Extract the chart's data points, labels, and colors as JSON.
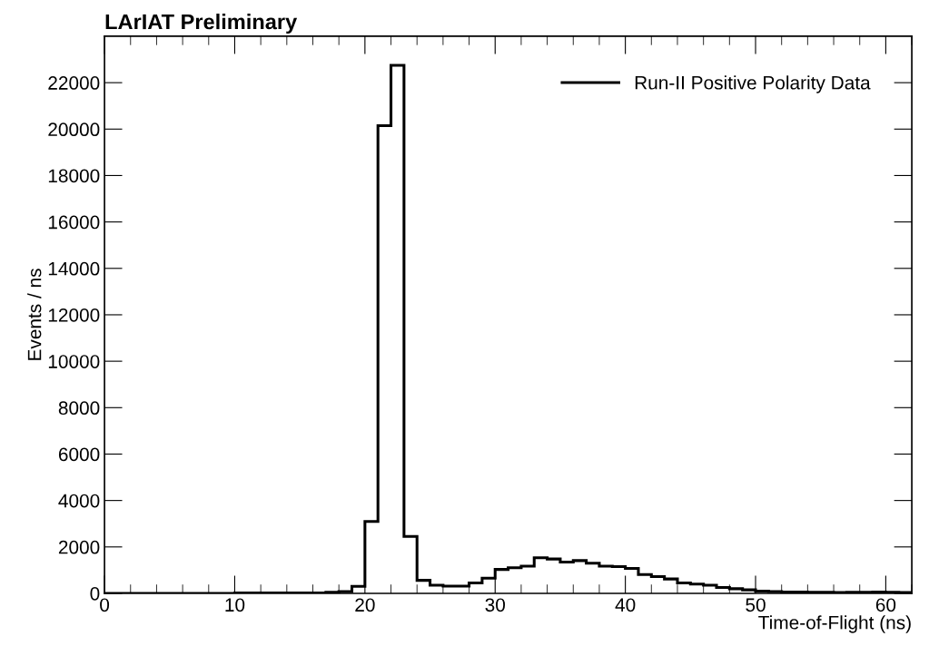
{
  "chart_data": {
    "type": "histogram",
    "title": "LArIAT Preliminary",
    "xlabel": "Time-of-Flight (ns)",
    "ylabel": "Events / ns",
    "bins": [
      0,
      1,
      2,
      3,
      4,
      5,
      6,
      7,
      8,
      9,
      10,
      11,
      12,
      13,
      14,
      15,
      16,
      17,
      18,
      19,
      20,
      21,
      22,
      23,
      24,
      25,
      26,
      27,
      28,
      29,
      30,
      31,
      32,
      33,
      34,
      35,
      36,
      37,
      38,
      39,
      40,
      41,
      42,
      43,
      44,
      45,
      46,
      47,
      48,
      49,
      50,
      51,
      52,
      53,
      54,
      55,
      56,
      57,
      58,
      59,
      60,
      61,
      62
    ],
    "series": [
      {
        "name": "Run-II Positive Polarity Data",
        "color": "#000000",
        "values": [
          0,
          0,
          0,
          0,
          0,
          0,
          0,
          0,
          0,
          0,
          20,
          20,
          20,
          20,
          20,
          20,
          20,
          50,
          80,
          300,
          3100,
          20150,
          22750,
          2450,
          560,
          350,
          310,
          310,
          450,
          650,
          1030,
          1100,
          1170,
          1530,
          1480,
          1350,
          1410,
          1300,
          1170,
          1150,
          1070,
          810,
          720,
          620,
          450,
          400,
          350,
          250,
          200,
          150,
          100,
          80,
          60,
          60,
          50,
          50,
          40,
          50,
          50,
          60,
          50,
          40
        ]
      }
    ],
    "xlim": [
      0,
      62
    ],
    "ylim": [
      0,
      24000
    ],
    "xticks": [
      0,
      10,
      20,
      30,
      40,
      50,
      60
    ],
    "yticks": [
      0,
      2000,
      4000,
      6000,
      8000,
      10000,
      12000,
      14000,
      16000,
      18000,
      20000,
      22000
    ],
    "legend": "top right",
    "grid": false
  }
}
